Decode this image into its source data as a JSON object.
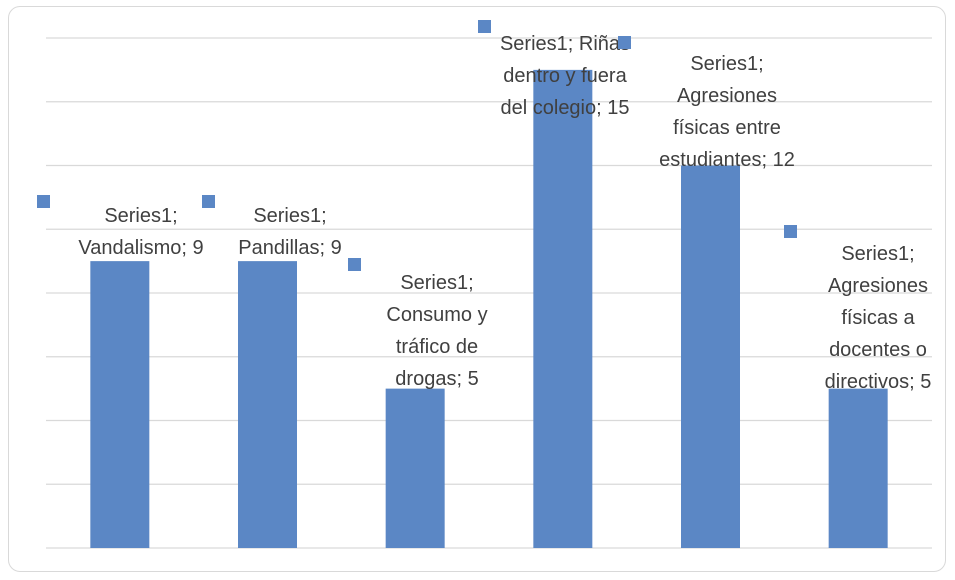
{
  "chart_data": {
    "type": "bar",
    "title": "",
    "xlabel": "",
    "ylabel": "",
    "ylim": [
      0,
      16
    ],
    "grid": true,
    "legend": "none",
    "bar_color": "#5b87c5",
    "grid_color": "#d9d9d9",
    "label_color": "#404040",
    "categories": [
      "Vandalismo",
      "Pandillas",
      "Consumo y tráfico de drogas",
      "Riñas dentro y fuera del colegio",
      "Agresiones físicas entre estudiantes",
      "Agresiones físicas a docentes o directivos"
    ],
    "series": [
      {
        "name": "Series1",
        "values": [
          9,
          9,
          5,
          15,
          12,
          5
        ]
      }
    ],
    "data_labels": [
      [
        "Series1;",
        "Vandalismo; 9"
      ],
      [
        "Series1;",
        "Pandillas; 9"
      ],
      [
        "Series1;",
        "Consumo y",
        "tráfico de",
        "drogas; 5"
      ],
      [
        "Series1; Riñas",
        "dentro y fuera",
        "del colegio; 15"
      ],
      [
        "Series1;",
        "Agresiones",
        "físicas entre",
        "estudiantes; 12"
      ],
      [
        "Series1;",
        "Agresiones",
        "físicas a",
        "docentes o",
        "directivos; 5"
      ]
    ]
  }
}
